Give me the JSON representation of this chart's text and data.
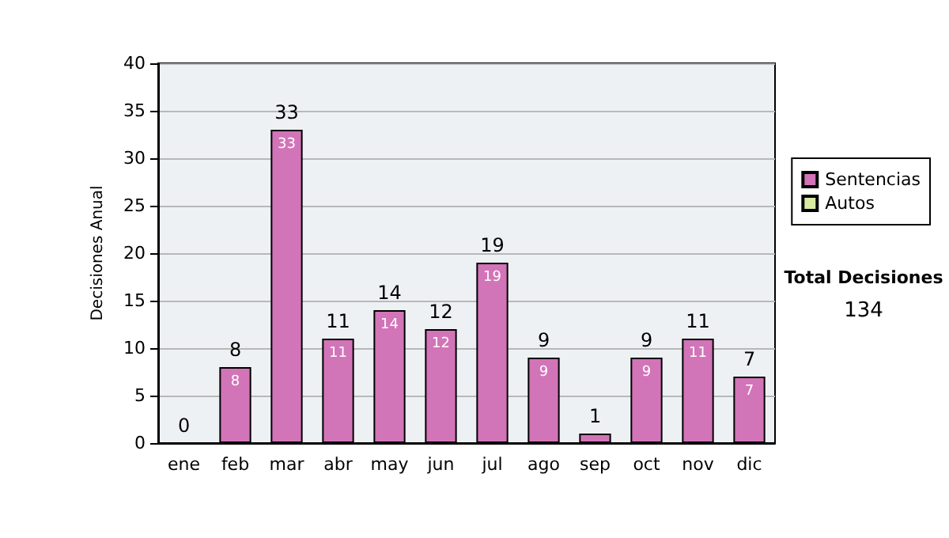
{
  "chart_data": {
    "type": "bar",
    "ylabel": "Decisiones Anual",
    "categories": [
      "ene",
      "feb",
      "mar",
      "abr",
      "may",
      "jun",
      "jul",
      "ago",
      "sep",
      "oct",
      "nov",
      "dic"
    ],
    "series": [
      {
        "name": "Sentencias",
        "color": "#d274b8",
        "values": [
          0,
          8,
          33,
          11,
          14,
          12,
          19,
          9,
          1,
          9,
          11,
          7
        ],
        "value_labels": [
          null,
          "8",
          "33",
          "11",
          "14",
          "12",
          "19",
          "9",
          null,
          "9",
          "11",
          "7"
        ]
      },
      {
        "name": "Autos",
        "color": "#d8eaa2",
        "values": [
          null,
          null,
          null,
          null,
          null,
          null,
          null,
          null,
          null,
          null,
          null,
          null
        ]
      }
    ],
    "stacked": true,
    "totals": [
      "0",
      "8",
      "33",
      "11",
      "14",
      "12",
      "19",
      "9",
      "1",
      "9",
      "11",
      "7"
    ],
    "ylim": [
      0,
      40
    ],
    "yticks": [
      0,
      5,
      10,
      15,
      20,
      25,
      30,
      35,
      40
    ],
    "grid": "y",
    "legend": "right",
    "annotations": [
      "Total Decisiones",
      "134"
    ]
  }
}
